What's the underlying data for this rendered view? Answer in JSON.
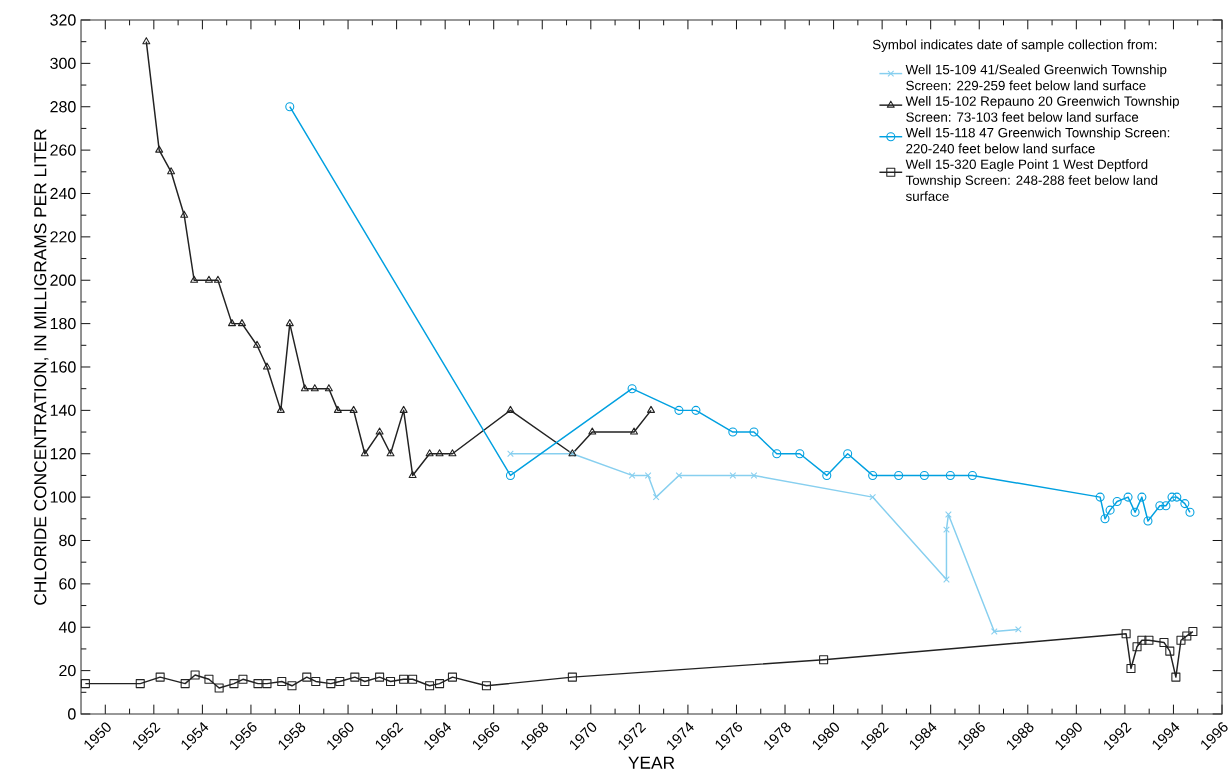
{
  "chart_data": {
    "type": "line",
    "xlabel": "YEAR",
    "ylabel": "CHLORIDE CONCENTRATION, IN MILLIGRAMS PER LITER",
    "legend_title": "Symbol indicates date of sample collection from:",
    "legend": "top right",
    "xlim": [
      1949,
      1996
    ],
    "xticks": [
      1950,
      1952,
      1954,
      1956,
      1958,
      1960,
      1962,
      1964,
      1966,
      1968,
      1970,
      1972,
      1974,
      1976,
      1978,
      1980,
      1982,
      1984,
      1986,
      1988,
      1990,
      1992,
      1994,
      1996
    ],
    "ylim": [
      0,
      320
    ],
    "yticks": [
      0,
      20,
      40,
      60,
      80,
      100,
      120,
      140,
      160,
      180,
      200,
      220,
      240,
      260,
      280,
      300,
      320
    ],
    "series": [
      {
        "name": "Well 15-109 41/Sealed Greenwich Township Screen: 229-259 feet below land surface",
        "color": "#87cfef",
        "marker": "cross",
        "x": [
          1966.69,
          1969.24,
          1971.7,
          1972.36,
          1972.69,
          1973.63,
          1975.85,
          1976.72,
          1981.61,
          1984.65,
          1984.65,
          1984.73,
          1986.62,
          1987.61
        ],
        "values": [
          120,
          120,
          110,
          110,
          100,
          110,
          110,
          110,
          100,
          62,
          85,
          92,
          38,
          39
        ]
      },
      {
        "name": "Well 15-102 Repauno 20 Greenwich Township Screen: 73-103 feet below land surface",
        "color": "#222222",
        "marker": "triangle",
        "x": [
          1951.69,
          1952.22,
          1952.71,
          1953.25,
          1953.66,
          1954.27,
          1954.64,
          1955.22,
          1955.63,
          1956.25,
          1956.66,
          1957.23,
          1957.6,
          1958.22,
          1958.63,
          1959.21,
          1959.58,
          1960.23,
          1960.69,
          1961.3,
          1961.75,
          1962.29,
          1962.66,
          1963.36,
          1963.77,
          1964.3,
          1966.69,
          1969.24,
          1970.06,
          1971.78,
          1972.48
        ],
        "values": [
          310,
          260,
          250,
          230,
          200,
          200,
          200,
          180,
          180,
          170,
          160,
          140,
          180,
          150,
          150,
          150,
          140,
          140,
          120,
          130,
          120,
          140,
          110,
          120,
          120,
          120,
          140,
          120,
          130,
          130,
          140
        ]
      },
      {
        "name": "Well 15-118 47 Greenwich Township Screen: 220-240 feet below land surface",
        "color": "#00a0e0",
        "marker": "circle",
        "x": [
          1957.6,
          1966.69,
          1971.7,
          1973.63,
          1974.33,
          1975.85,
          1976.72,
          1977.66,
          1978.61,
          1979.72,
          1980.58,
          1981.61,
          1982.68,
          1983.74,
          1984.81,
          1985.72,
          1990.98,
          1991.18,
          1991.39,
          1991.68,
          1992.13,
          1992.42,
          1992.7,
          1992.95,
          1993.44,
          1993.69,
          1993.94,
          1994.14,
          1994.47,
          1994.68
        ],
        "values": [
          280,
          110,
          150,
          140,
          140,
          130,
          130,
          120,
          120,
          110,
          120,
          110,
          110,
          110,
          110,
          110,
          100,
          90,
          94,
          98,
          100,
          93,
          100,
          89,
          96,
          96,
          100,
          100,
          97,
          93
        ]
      },
      {
        "name": "Well 15-320 Eagle Point 1 West Deptford Township Screen: 248-288 feet below land surface",
        "color": "#222222",
        "marker": "square",
        "x": [
          1949.18,
          1951.44,
          1952.26,
          1953.29,
          1953.7,
          1954.27,
          1954.69,
          1955.3,
          1955.67,
          1956.29,
          1956.66,
          1957.27,
          1957.69,
          1958.3,
          1958.67,
          1959.29,
          1959.66,
          1960.28,
          1960.69,
          1961.3,
          1961.75,
          1962.29,
          1962.66,
          1963.36,
          1963.77,
          1964.3,
          1965.7,
          1969.24,
          1979.59,
          1992.05,
          1992.25,
          1992.5,
          1992.7,
          1992.99,
          1993.61,
          1993.85,
          1994.1,
          1994.31,
          1994.55,
          1994.8
        ],
        "values": [
          14,
          14,
          17,
          14,
          18,
          16,
          12,
          14,
          16,
          14,
          14,
          15,
          13,
          17,
          15,
          14,
          15,
          17,
          15,
          17,
          15,
          16,
          16,
          13,
          14,
          17,
          13,
          17,
          25,
          37,
          21,
          31,
          34,
          34,
          33,
          29,
          17,
          34,
          36,
          38
        ]
      }
    ]
  }
}
